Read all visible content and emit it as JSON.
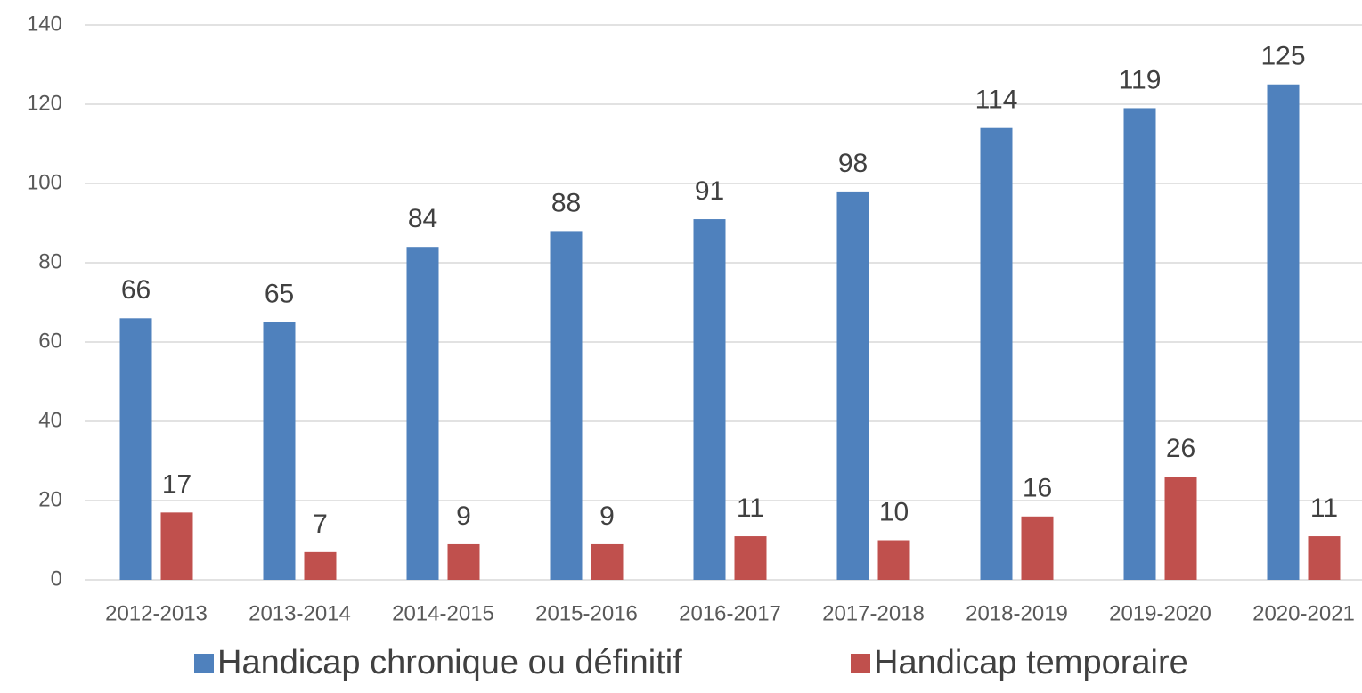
{
  "chart_data": {
    "type": "bar",
    "categories": [
      "2012-2013",
      "2013-2014",
      "2014-2015",
      "2015-2016",
      "2016-2017",
      "2017-2018",
      "2018-2019",
      "2019-2020",
      "2020-2021"
    ],
    "series": [
      {
        "name": "Handicap chronique ou définitif",
        "color": "#4f81bd",
        "values": [
          66,
          65,
          84,
          88,
          91,
          98,
          114,
          119,
          125
        ]
      },
      {
        "name": "Handicap temporaire",
        "color": "#c0504d",
        "values": [
          17,
          7,
          9,
          9,
          11,
          10,
          16,
          26,
          11
        ]
      }
    ],
    "ylim": [
      0,
      140
    ],
    "yticks": [
      0,
      20,
      40,
      60,
      80,
      100,
      120,
      140
    ],
    "grid": true,
    "legend": "bottom"
  }
}
